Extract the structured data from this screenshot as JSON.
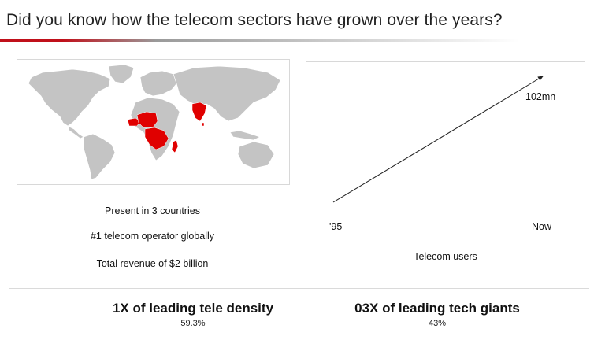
{
  "title": "Did you know how the telecom sectors have grown over the years?",
  "facts": [
    "Present in 3 countries",
    "#1 telecom operator globally",
    "Total revenue of $2 billion"
  ],
  "colors": {
    "accent": "#e00000",
    "land": "#c4c4c4",
    "arrow": "#222222"
  },
  "chart": {
    "start_label": "'95",
    "end_label": "Now",
    "value_label": "102mn",
    "caption": "Telecom users"
  },
  "chart_data": {
    "type": "line",
    "x": [
      "'95",
      "Now"
    ],
    "series": [
      {
        "values": [
          null,
          102
        ]
      }
    ],
    "annotations": [
      "102mn"
    ],
    "xlabel": "Telecom users"
  },
  "stats": [
    {
      "headline": "1X of leading tele density",
      "value": "59.3%"
    },
    {
      "headline": "03X of leading tech giants",
      "value": "43%"
    }
  ]
}
